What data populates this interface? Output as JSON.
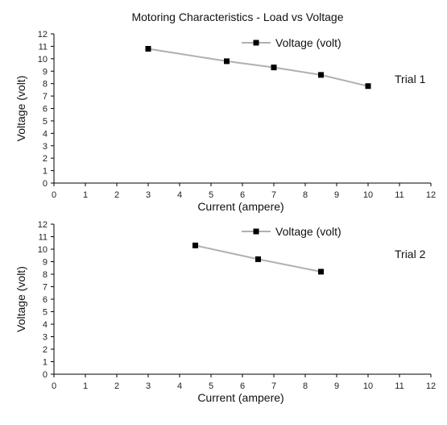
{
  "title": "Motoring Characteristics - Load vs Voltage",
  "chart_data": [
    {
      "type": "line",
      "annotation": "Trial 1",
      "xlabel": "Current (ampere)",
      "ylabel": "Voltage (volt)",
      "xlim": [
        0,
        12
      ],
      "ylim": [
        0,
        12
      ],
      "xticks": [
        0,
        1,
        2,
        3,
        4,
        5,
        6,
        7,
        8,
        9,
        10,
        11,
        12
      ],
      "yticks": [
        0,
        1,
        2,
        3,
        4,
        5,
        6,
        7,
        8,
        9,
        10,
        11,
        12
      ],
      "grid": false,
      "legend_position": "top-right",
      "series": [
        {
          "name": "Voltage (volt)",
          "x": [
            3,
            5.5,
            7,
            8.5,
            10
          ],
          "y": [
            10.8,
            9.8,
            9.3,
            8.7,
            7.8
          ],
          "line_color": "#b0b0b0",
          "marker_color": "#000000"
        }
      ]
    },
    {
      "type": "line",
      "annotation": "Trial 2",
      "xlabel": "Current (ampere)",
      "ylabel": "Voltage (volt)",
      "xlim": [
        0,
        12
      ],
      "ylim": [
        0,
        12
      ],
      "xticks": [
        0,
        1,
        2,
        3,
        4,
        5,
        6,
        7,
        8,
        9,
        10,
        11,
        12
      ],
      "yticks": [
        0,
        1,
        2,
        3,
        4,
        5,
        6,
        7,
        8,
        9,
        10,
        11,
        12
      ],
      "grid": false,
      "legend_position": "top-right",
      "series": [
        {
          "name": "Voltage (volt)",
          "x": [
            4.5,
            6.5,
            8.5
          ],
          "y": [
            10.3,
            9.2,
            8.2
          ],
          "line_color": "#b0b0b0",
          "marker_color": "#000000"
        }
      ]
    }
  ]
}
